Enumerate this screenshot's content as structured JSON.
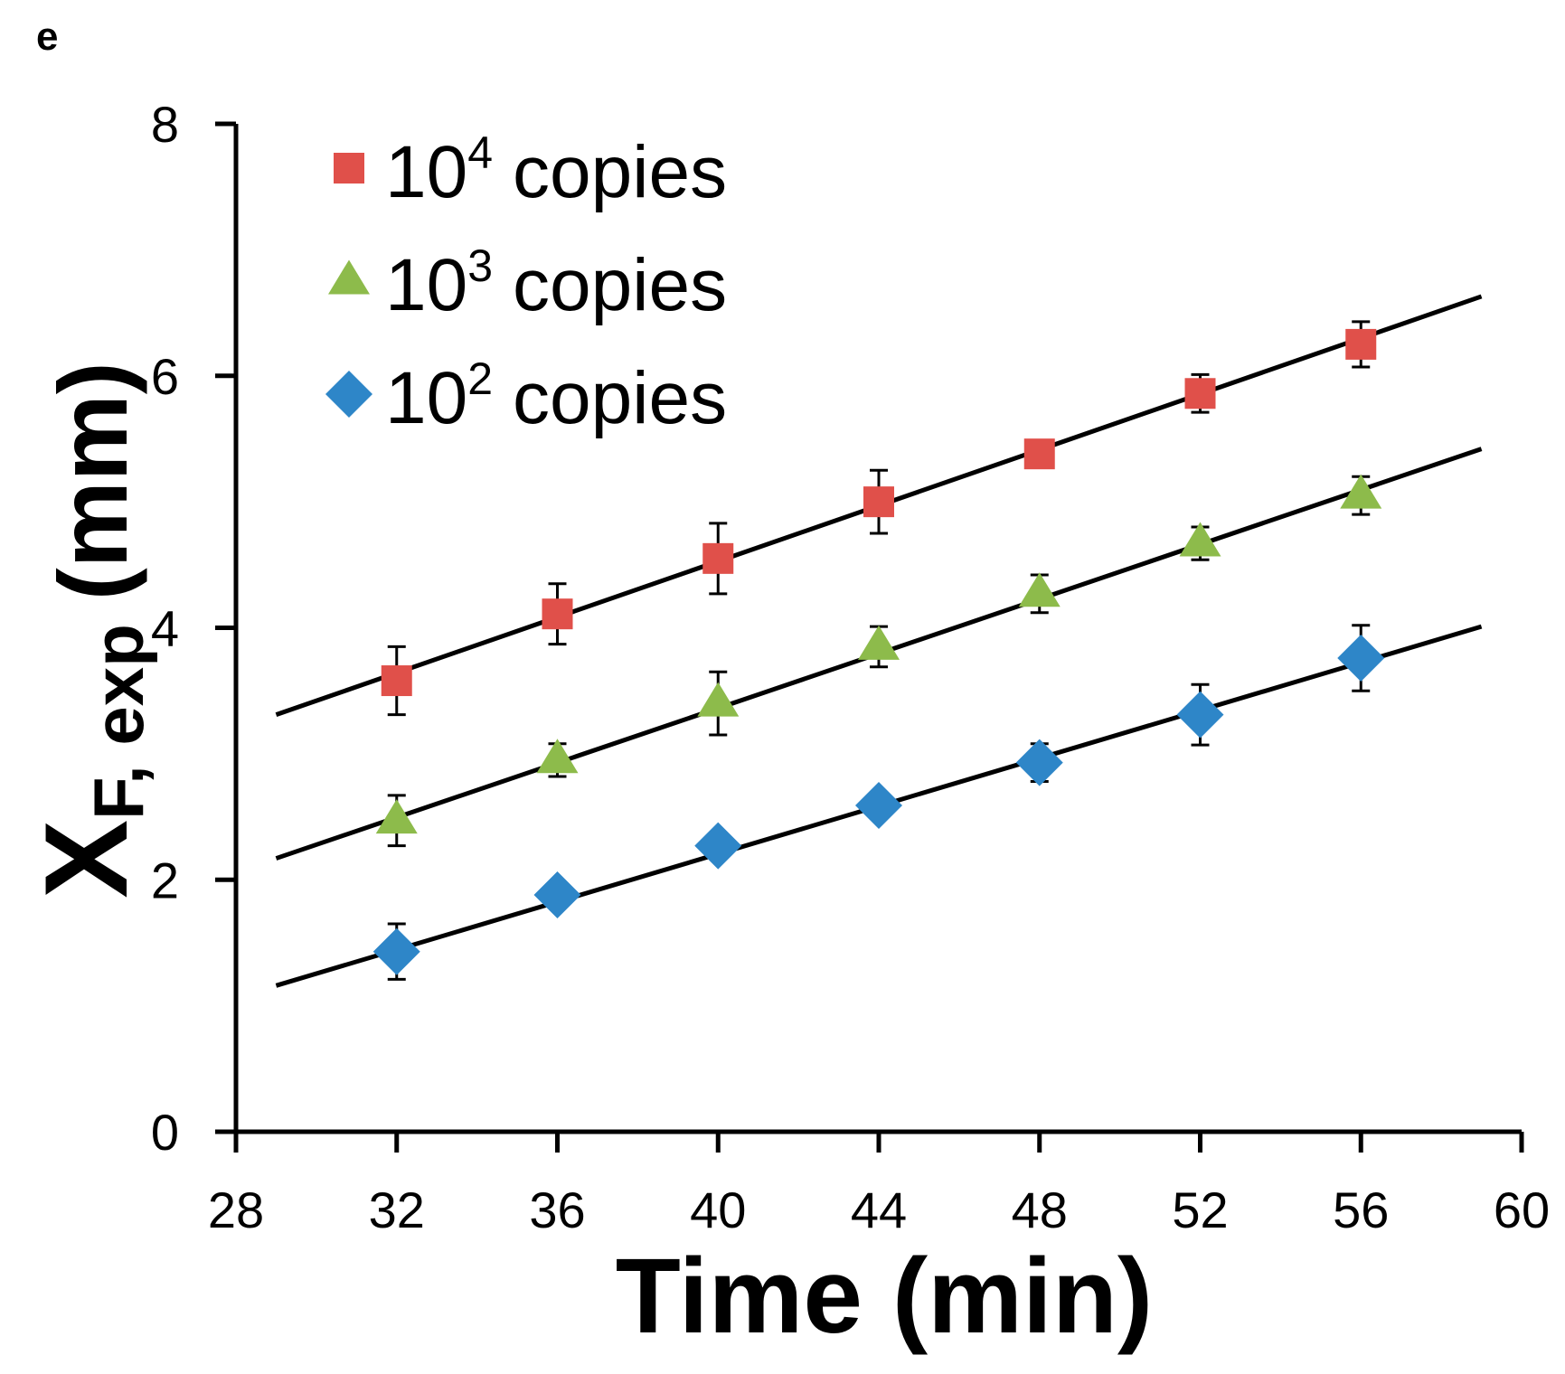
{
  "panel_label": "e",
  "chart_data": {
    "type": "scatter",
    "title": "",
    "xlabel": "Time (min)",
    "ylabel": {
      "main": "X",
      "sub": "F, exp",
      "unit": "(mm)"
    },
    "xlim": [
      28,
      60
    ],
    "ylim": [
      0,
      8
    ],
    "xticks": [
      "28",
      "32",
      "36",
      "40",
      "44",
      "48",
      "52",
      "56",
      "60"
    ],
    "yticks": [
      "0",
      "2",
      "4",
      "6",
      "8"
    ],
    "grid": false,
    "legend_position": "top-left",
    "x": [
      32,
      36,
      40,
      44,
      48,
      52,
      56
    ],
    "series": [
      {
        "name": "10^4 copies",
        "label_base": "10",
        "label_exp": "4",
        "label_rest": "copies",
        "marker": "square",
        "color": "#e0504a",
        "values": [
          3.58,
          4.11,
          4.55,
          5.0,
          5.38,
          5.86,
          6.25
        ],
        "errors": [
          0.27,
          0.24,
          0.28,
          0.25,
          0.1,
          0.15,
          0.18
        ],
        "fit": {
          "x0": 29,
          "y0": 3.31,
          "x1": 59,
          "y1": 6.63
        }
      },
      {
        "name": "10^3 copies",
        "label_base": "10",
        "label_exp": "3",
        "label_rest": "copies",
        "marker": "triangle",
        "color": "#8dbb4b",
        "values": [
          2.47,
          2.95,
          3.4,
          3.85,
          4.27,
          4.67,
          5.05
        ],
        "errors": [
          0.2,
          0.13,
          0.25,
          0.16,
          0.15,
          0.13,
          0.15
        ],
        "fit": {
          "x0": 29,
          "y0": 2.17,
          "x1": 59,
          "y1": 5.42
        }
      },
      {
        "name": "10^2 copies",
        "label_base": "10",
        "label_exp": "2",
        "label_rest": "copies",
        "marker": "diamond",
        "color": "#2e86c8",
        "values": [
          1.43,
          1.88,
          2.27,
          2.59,
          2.93,
          3.31,
          3.76
        ],
        "errors": [
          0.22,
          0.05,
          0.05,
          0.05,
          0.15,
          0.24,
          0.26
        ],
        "fit": {
          "x0": 29,
          "y0": 1.16,
          "x1": 59,
          "y1": 4.01
        }
      }
    ]
  }
}
